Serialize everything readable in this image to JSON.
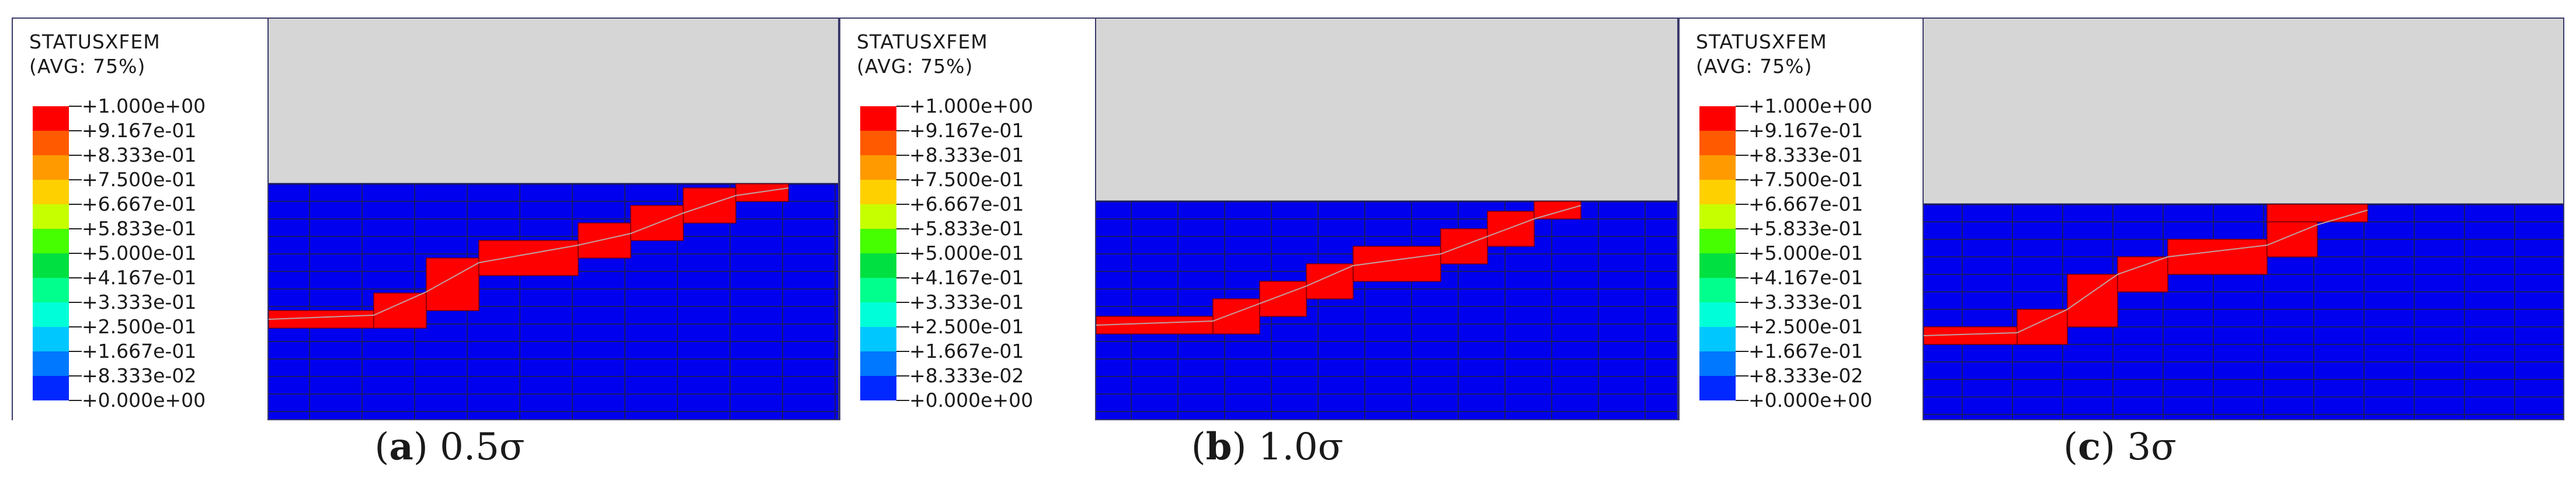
{
  "legend": {
    "title_line1": "STATUSXFEM",
    "title_line2": "(AVG: 75%)",
    "levels": [
      {
        "label": "+1.000e+00",
        "color": "#ff0000"
      },
      {
        "label": "+9.167e-01",
        "color": "#ff5a00"
      },
      {
        "label": "+8.333e-01",
        "color": "#ff9a00"
      },
      {
        "label": "+7.500e-01",
        "color": "#ffd000"
      },
      {
        "label": "+6.667e-01",
        "color": "#c6ff00"
      },
      {
        "label": "+5.833e-01",
        "color": "#46ff00"
      },
      {
        "label": "+5.000e-01",
        "color": "#00e040"
      },
      {
        "label": "+4.167e-01",
        "color": "#00ff8c"
      },
      {
        "label": "+3.333e-01",
        "color": "#00ffd8"
      },
      {
        "label": "+2.500e-01",
        "color": "#00c8ff"
      },
      {
        "label": "+1.667e-01",
        "color": "#0078ff"
      },
      {
        "label": "+8.333e-02",
        "color": "#0028ff"
      },
      {
        "label": "+0.000e+00",
        "color": "#0000ff"
      }
    ]
  },
  "colors": {
    "background_upper": "#d6d6d6",
    "mesh_fill": "#0000ee",
    "mesh_line": "#1a1a6a",
    "crack_fill": "#ff0000"
  },
  "panels": [
    {
      "caption_letter": "(a)",
      "caption_value": "0.5σ"
    },
    {
      "caption_letter": "(b)",
      "caption_value": "1.0σ"
    },
    {
      "caption_letter": "(c)",
      "caption_value": "3σ"
    }
  ]
}
